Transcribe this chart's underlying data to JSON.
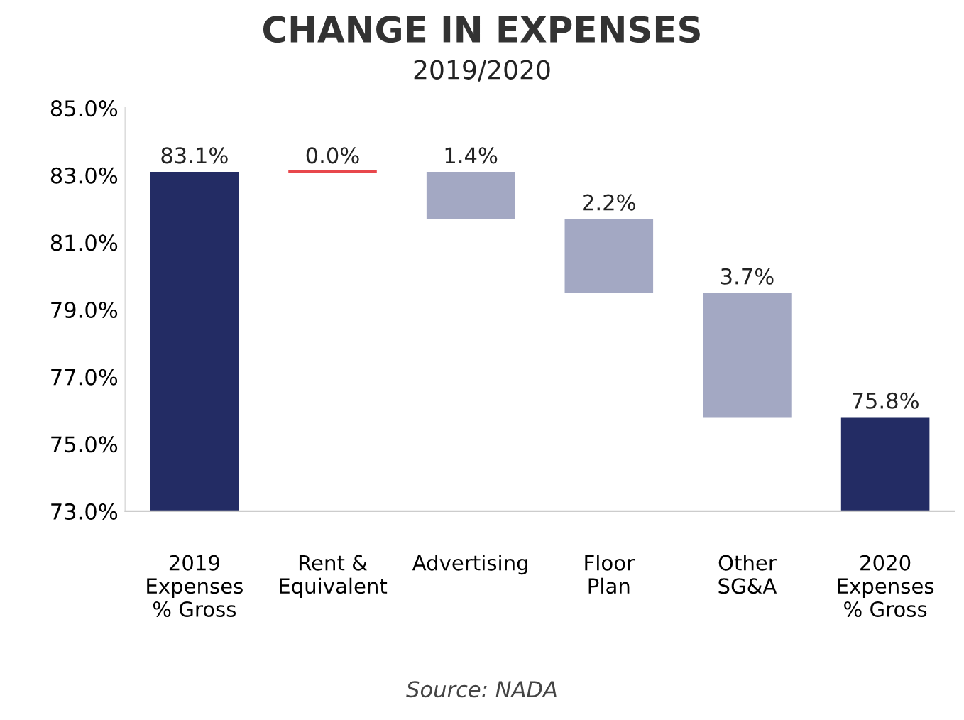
{
  "chart_data": {
    "type": "bar",
    "title": "CHANGE IN EXPENSES",
    "subtitle": "2019/2020",
    "categories": [
      "2019\nExpenses\n% Gross",
      "Rent &\nEquivalent",
      "Advertising",
      "Floor\nPlan",
      "Other\nSG&A",
      "2020\nExpenses\n% Gross"
    ],
    "values": [
      83.1,
      0,
      -1.4,
      -2.2,
      -3.7,
      75.8
    ],
    "base": [
      0,
      83.1,
      83.1,
      81.7,
      79.5,
      0
    ],
    "colors": [
      "#232c64",
      "#e8474c",
      "#a3a8c3",
      "#a3a8c3",
      "#a3a8c3",
      "#232c64"
    ],
    "value_labels": [
      "83.1%",
      "0.0%",
      "1.4%",
      "2.2%",
      "3.7%",
      "75.8%"
    ],
    "ylim": [
      73,
      85
    ],
    "yticks": [
      {
        "value": 73,
        "label": "73.0%"
      },
      {
        "value": 75,
        "label": "75.0%"
      },
      {
        "value": 77,
        "label": "77.0%"
      },
      {
        "value": 79,
        "label": "79.0%"
      },
      {
        "value": 81,
        "label": "81.0%"
      },
      {
        "value": 83,
        "label": "83.0%"
      },
      {
        "value": 85,
        "label": "85.0%"
      }
    ],
    "grid": false,
    "legend": false,
    "annotations": [
      "Source: NADA"
    ]
  }
}
